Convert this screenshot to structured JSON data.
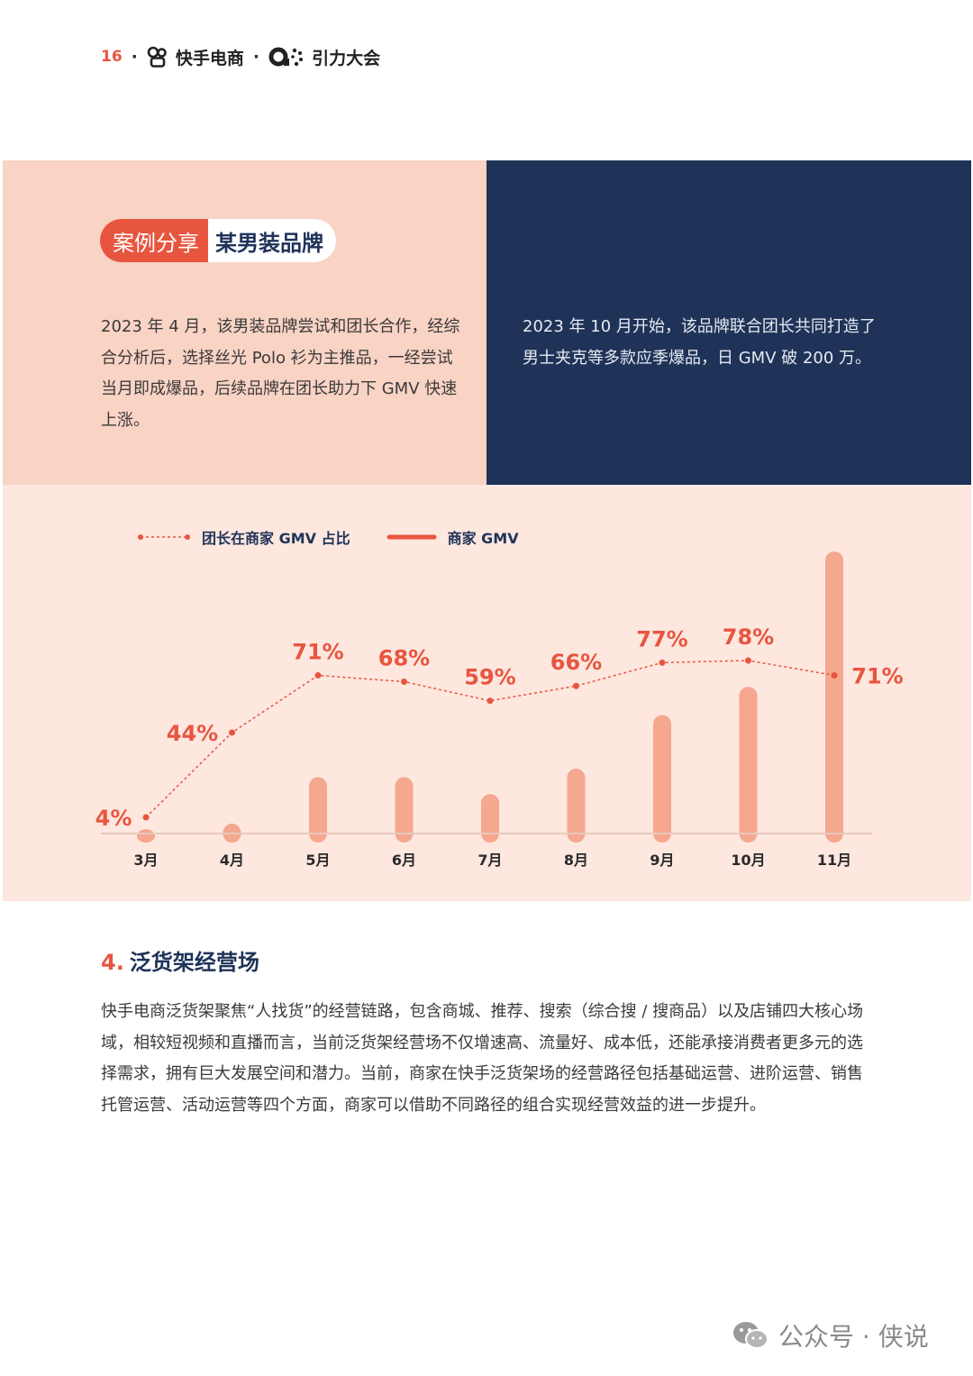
{
  "header": {
    "page_number": "16",
    "separator": "·",
    "brand1": "快手电商",
    "brand2": "引力大会"
  },
  "case": {
    "badge_label": "案例分享",
    "badge_title": "某男装品牌",
    "left_text": "2023 年 4 月，该男装品牌尝试和团长合作，经综合分析后，选择丝光 Polo 衫为主推品，一经尝试当月即成爆品，后续品牌在团长助力下 GMV 快速上涨。",
    "right_text": "2023 年 10 月开始，该品牌联合团长共同打造了男士夹克等多款应季爆品，日 GMV 破 200 万。"
  },
  "chart_data": {
    "type": "bar",
    "categories": [
      "3月",
      "4月",
      "5月",
      "6月",
      "7月",
      "8月",
      "9月",
      "10月",
      "11月"
    ],
    "series": [
      {
        "name": "商家 GMV",
        "type": "bar",
        "values": [
          1.5,
          3.5,
          20,
          20,
          14,
          23,
          42,
          52,
          100
        ],
        "color": "#f5a78f"
      },
      {
        "name": "团长在商家 GMV 占比",
        "type": "line",
        "values": [
          4,
          44,
          71,
          68,
          59,
          66,
          77,
          78,
          71
        ],
        "labels": [
          "4%",
          "44%",
          "71%",
          "68%",
          "59%",
          "66%",
          "77%",
          "78%",
          "71%"
        ],
        "color": "#e8553f"
      }
    ],
    "legend": [
      "团长在商家 GMV 占比",
      "商家 GMV"
    ],
    "legend_position": "top-left",
    "grid": false
  },
  "section": {
    "number": "4.",
    "title": "泛货架经营场",
    "body": "快手电商泛货架聚焦“人找货”的经营链路，包含商城、推荐、搜索（综合搜 / 搜商品）以及店铺四大核心场域，相较短视频和直播而言，当前泛货架经营场不仅增速高、流量好、成本低，还能承接消费者更多元的选择需求，拥有巨大发展空间和潜力。当前，商家在快手泛货架场的经营路径包括基础运营、进阶运营、销售托管运营、活动运营等四个方面，商家可以借助不同路径的组合实现经营效益的进一步提升。"
  },
  "watermark": {
    "text": "公众号 · 侠说",
    "icon": "wechat-icon"
  },
  "colors": {
    "accent": "#e8553f",
    "navy": "#1f3358",
    "peach": "#f9d3c4",
    "bar": "#f5a78f",
    "chart_bg": "#fde7df"
  }
}
